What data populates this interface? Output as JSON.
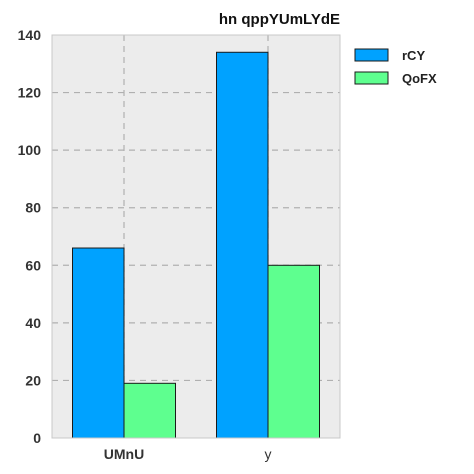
{
  "chart_data": {
    "type": "bar",
    "title": "hn qppYUmLYdE",
    "xlabel": "",
    "ylabel": "",
    "categories": [
      "UMnU",
      "y"
    ],
    "category_bold": [
      true,
      false
    ],
    "series": [
      {
        "name": "rCY",
        "values": [
          66,
          134
        ],
        "color": "#00a2ff"
      },
      {
        "name": "QoFX",
        "values": [
          19,
          60
        ],
        "color": "#5eff8f"
      }
    ],
    "ylim": [
      0,
      140
    ],
    "yticks": [
      0,
      20,
      40,
      60,
      80,
      100,
      120,
      140
    ],
    "grid": true,
    "legend_position": "right",
    "background_color": "#ececec",
    "grid_color": "#b0b0b0"
  }
}
